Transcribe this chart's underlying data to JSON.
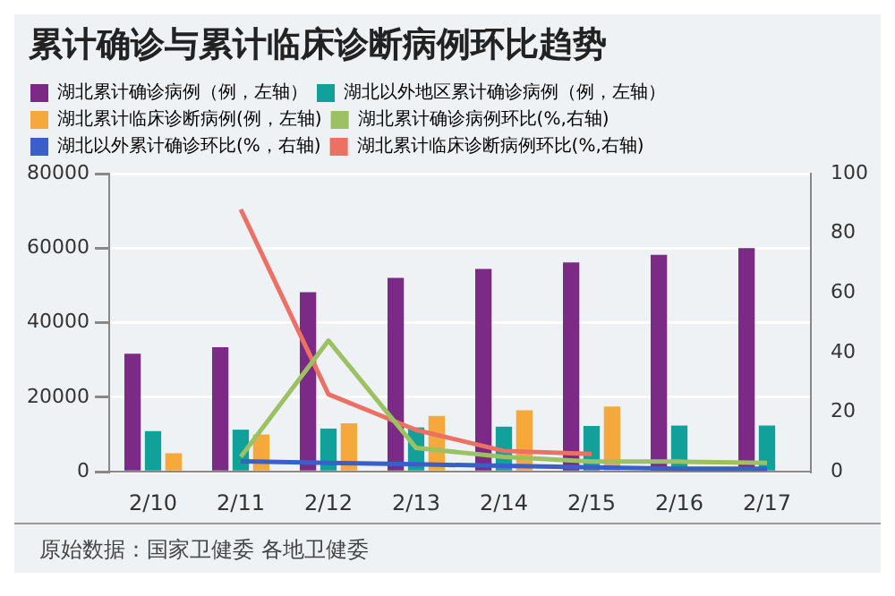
{
  "chart_data": {
    "type": "bar",
    "title": "累计确诊与累计临床诊断病例环比趋势",
    "categories": [
      "2/10",
      "2/11",
      "2/12",
      "2/13",
      "2/14",
      "2/15",
      "2/16",
      "2/17"
    ],
    "series": [
      {
        "name": "湖北累计确诊病例（例，左轴）",
        "color": "#7b2a85",
        "values": [
          31700,
          33400,
          48200,
          52000,
          54400,
          56200,
          58200,
          60000
        ]
      },
      {
        "name": "湖北以外地区累计确诊病例（例，左轴）",
        "color": "#12a09a",
        "values": [
          10900,
          11300,
          11600,
          11900,
          12100,
          12300,
          12400,
          12400
        ]
      },
      {
        "name": "湖北累计临床诊断病例(例，左轴)",
        "color": "#f5a93c",
        "values": [
          5000,
          10000,
          13000,
          15000,
          16500,
          17500,
          null,
          null
        ]
      },
      {
        "name": "湖北累计确诊病例环比(%,右轴)",
        "type": "line",
        "axis": "y2",
        "color": "#9cc162",
        "values": [
          null,
          5,
          44,
          8,
          5,
          3.4,
          3.4,
          3
        ]
      },
      {
        "name": "湖北以外累计确诊环比(%，右轴)",
        "type": "line",
        "axis": "y2",
        "color": "#3a5fc8",
        "values": [
          null,
          3.5,
          3,
          2.5,
          2,
          1.5,
          1,
          1
        ]
      },
      {
        "name": "湖北累计临床诊断病例环比(%,右轴)",
        "type": "line",
        "axis": "y2",
        "color": "#ec7063",
        "values": [
          null,
          88,
          26,
          14,
          7,
          6,
          null,
          null
        ]
      }
    ],
    "ylim": [
      0,
      80000
    ],
    "yticks": [
      0,
      20000,
      40000,
      60000,
      80000
    ],
    "y2lim": [
      0,
      100
    ],
    "y2ticks": [
      0,
      20,
      40,
      60,
      80,
      100
    ],
    "grid": "y",
    "legend": "top",
    "marker": "none",
    "line_style": "solid",
    "annotations": [
      "原始数据：国家卫健委 各地卫健委"
    ]
  }
}
